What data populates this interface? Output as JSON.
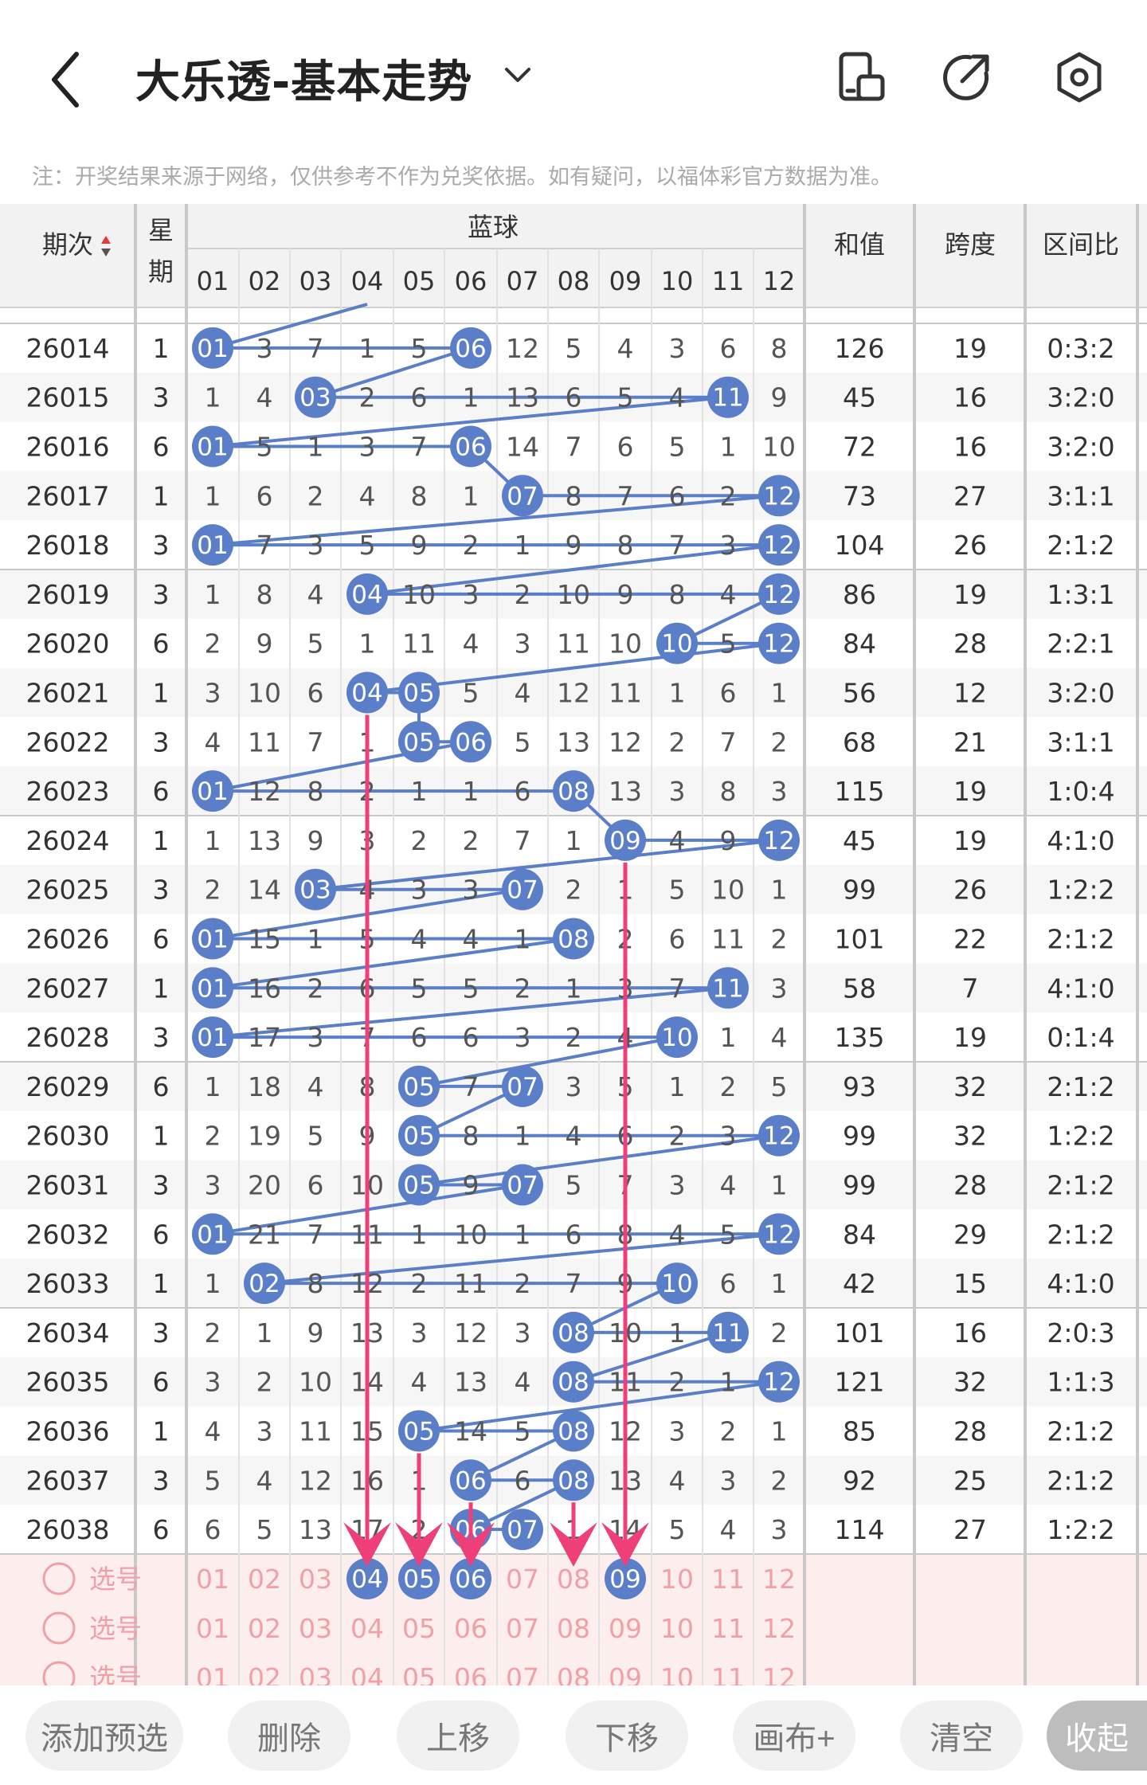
{
  "header": {
    "title": "大乐透-基本走势",
    "note": "注：开奖结果来源于网络，仅供参考不作为兑奖依据。如有疑问，以福体彩官方数据为准。",
    "icons": [
      "back-icon",
      "chevron-down-icon",
      "layout-icon",
      "share-icon",
      "settings-icon"
    ]
  },
  "table": {
    "col_period": "期次",
    "col_week_1": "星",
    "col_week_2": "期",
    "col_blue": "蓝球",
    "col_sum": "和值",
    "col_span": "跨度",
    "col_ratio": "区间比",
    "numbers": [
      "01",
      "02",
      "03",
      "04",
      "05",
      "06",
      "07",
      "08",
      "09",
      "10",
      "11",
      "12"
    ],
    "rows": [
      {
        "p": "26014",
        "w": "1",
        "c": [
          "01",
          "3",
          "7",
          "1",
          "5",
          "06",
          "12",
          "5",
          "4",
          "3",
          "6",
          "8"
        ],
        "s": "126",
        "k": "19",
        "r": "0:3:2"
      },
      {
        "p": "26015",
        "w": "3",
        "c": [
          "1",
          "4",
          "03",
          "2",
          "6",
          "1",
          "13",
          "6",
          "5",
          "4",
          "11",
          "9"
        ],
        "s": "45",
        "k": "16",
        "r": "3:2:0"
      },
      {
        "p": "26016",
        "w": "6",
        "c": [
          "01",
          "5",
          "1",
          "3",
          "7",
          "06",
          "14",
          "7",
          "6",
          "5",
          "1",
          "10"
        ],
        "s": "72",
        "k": "16",
        "r": "3:2:0"
      },
      {
        "p": "26017",
        "w": "1",
        "c": [
          "1",
          "6",
          "2",
          "4",
          "8",
          "1",
          "07",
          "8",
          "7",
          "6",
          "2",
          "12"
        ],
        "s": "73",
        "k": "27",
        "r": "3:1:1"
      },
      {
        "p": "26018",
        "w": "3",
        "c": [
          "01",
          "7",
          "3",
          "5",
          "9",
          "2",
          "1",
          "9",
          "8",
          "7",
          "3",
          "12"
        ],
        "s": "104",
        "k": "26",
        "r": "2:1:2"
      },
      {
        "p": "26019",
        "w": "3",
        "c": [
          "1",
          "8",
          "4",
          "04",
          "10",
          "3",
          "2",
          "10",
          "9",
          "8",
          "4",
          "12"
        ],
        "s": "86",
        "k": "19",
        "r": "1:3:1"
      },
      {
        "p": "26020",
        "w": "6",
        "c": [
          "2",
          "9",
          "5",
          "1",
          "11",
          "4",
          "3",
          "11",
          "10",
          "10",
          "5",
          "12"
        ],
        "s": "84",
        "k": "28",
        "r": "2:2:1"
      },
      {
        "p": "26021",
        "w": "1",
        "c": [
          "3",
          "10",
          "6",
          "04",
          "05",
          "5",
          "4",
          "12",
          "11",
          "1",
          "6",
          "1"
        ],
        "s": "56",
        "k": "12",
        "r": "3:2:0"
      },
      {
        "p": "26022",
        "w": "3",
        "c": [
          "4",
          "11",
          "7",
          "1",
          "05",
          "06",
          "5",
          "13",
          "12",
          "2",
          "7",
          "2"
        ],
        "s": "68",
        "k": "21",
        "r": "3:1:1"
      },
      {
        "p": "26023",
        "w": "6",
        "c": [
          "01",
          "12",
          "8",
          "2",
          "1",
          "1",
          "6",
          "08",
          "13",
          "3",
          "8",
          "3"
        ],
        "s": "115",
        "k": "19",
        "r": "1:0:4"
      },
      {
        "p": "26024",
        "w": "1",
        "c": [
          "1",
          "13",
          "9",
          "3",
          "2",
          "2",
          "7",
          "1",
          "09",
          "4",
          "9",
          "12"
        ],
        "s": "45",
        "k": "19",
        "r": "4:1:0"
      },
      {
        "p": "26025",
        "w": "3",
        "c": [
          "2",
          "14",
          "03",
          "4",
          "3",
          "3",
          "07",
          "2",
          "1",
          "5",
          "10",
          "1"
        ],
        "s": "99",
        "k": "26",
        "r": "1:2:2"
      },
      {
        "p": "26026",
        "w": "6",
        "c": [
          "01",
          "15",
          "1",
          "5",
          "4",
          "4",
          "1",
          "08",
          "2",
          "6",
          "11",
          "2"
        ],
        "s": "101",
        "k": "22",
        "r": "2:1:2"
      },
      {
        "p": "26027",
        "w": "1",
        "c": [
          "01",
          "16",
          "2",
          "6",
          "5",
          "5",
          "2",
          "1",
          "3",
          "7",
          "11",
          "3"
        ],
        "s": "58",
        "k": "7",
        "r": "4:1:0"
      },
      {
        "p": "26028",
        "w": "3",
        "c": [
          "01",
          "17",
          "3",
          "7",
          "6",
          "6",
          "3",
          "2",
          "4",
          "10",
          "1",
          "4"
        ],
        "s": "135",
        "k": "19",
        "r": "0:1:4"
      },
      {
        "p": "26029",
        "w": "6",
        "c": [
          "1",
          "18",
          "4",
          "8",
          "05",
          "7",
          "07",
          "3",
          "5",
          "1",
          "2",
          "5"
        ],
        "s": "93",
        "k": "32",
        "r": "2:1:2"
      },
      {
        "p": "26030",
        "w": "1",
        "c": [
          "2",
          "19",
          "5",
          "9",
          "05",
          "8",
          "1",
          "4",
          "6",
          "2",
          "3",
          "12"
        ],
        "s": "99",
        "k": "32",
        "r": "1:2:2"
      },
      {
        "p": "26031",
        "w": "3",
        "c": [
          "3",
          "20",
          "6",
          "10",
          "05",
          "9",
          "07",
          "5",
          "7",
          "3",
          "4",
          "1"
        ],
        "s": "99",
        "k": "28",
        "r": "2:1:2"
      },
      {
        "p": "26032",
        "w": "6",
        "c": [
          "01",
          "21",
          "7",
          "11",
          "1",
          "10",
          "1",
          "6",
          "8",
          "4",
          "5",
          "12"
        ],
        "s": "84",
        "k": "29",
        "r": "2:1:2"
      },
      {
        "p": "26033",
        "w": "1",
        "c": [
          "1",
          "02",
          "8",
          "12",
          "2",
          "11",
          "2",
          "7",
          "9",
          "10",
          "6",
          "1"
        ],
        "s": "42",
        "k": "15",
        "r": "4:1:0"
      },
      {
        "p": "26034",
        "w": "3",
        "c": [
          "2",
          "1",
          "9",
          "13",
          "3",
          "12",
          "3",
          "08",
          "10",
          "1",
          "11",
          "2"
        ],
        "s": "101",
        "k": "16",
        "r": "2:0:3"
      },
      {
        "p": "26035",
        "w": "6",
        "c": [
          "3",
          "2",
          "10",
          "14",
          "4",
          "13",
          "4",
          "08",
          "11",
          "2",
          "1",
          "12"
        ],
        "s": "121",
        "k": "32",
        "r": "1:1:3"
      },
      {
        "p": "26036",
        "w": "1",
        "c": [
          "4",
          "3",
          "11",
          "15",
          "05",
          "14",
          "5",
          "08",
          "12",
          "3",
          "2",
          "1"
        ],
        "s": "85",
        "k": "28",
        "r": "2:1:2"
      },
      {
        "p": "26037",
        "w": "3",
        "c": [
          "5",
          "4",
          "12",
          "16",
          "1",
          "06",
          "6",
          "08",
          "13",
          "4",
          "3",
          "2"
        ],
        "s": "92",
        "k": "25",
        "r": "2:1:2"
      },
      {
        "p": "26038",
        "w": "6",
        "c": [
          "6",
          "5",
          "13",
          "17",
          "2",
          "06",
          "07",
          "1",
          "14",
          "5",
          "4",
          "3"
        ],
        "s": "114",
        "k": "27",
        "r": "1:2:2"
      }
    ],
    "hits": [
      [
        1,
        6
      ],
      [
        3,
        11
      ],
      [
        1,
        6
      ],
      [
        7,
        12
      ],
      [
        1,
        12
      ],
      [
        4,
        12
      ],
      [
        10,
        12
      ],
      [
        4,
        5
      ],
      [
        5,
        6
      ],
      [
        1,
        8
      ],
      [
        9,
        12
      ],
      [
        3,
        7
      ],
      [
        1,
        8
      ],
      [
        1,
        11
      ],
      [
        1,
        10
      ],
      [
        5,
        7
      ],
      [
        5,
        12
      ],
      [
        5,
        7
      ],
      [
        1,
        12
      ],
      [
        2,
        10
      ],
      [
        8,
        11
      ],
      [
        8,
        12
      ],
      [
        5,
        8
      ],
      [
        6,
        8
      ],
      [
        6,
        7
      ]
    ],
    "select_label": "选号",
    "select_rows": [
      {
        "selected": [
          4,
          5,
          6,
          9
        ]
      },
      {
        "selected": []
      },
      {
        "selected": []
      }
    ],
    "arrows": [
      4,
      5,
      6,
      8,
      9
    ]
  },
  "buttons": {
    "add": "添加预选",
    "delete": "删除",
    "up": "上移",
    "down": "下移",
    "canvas": "画布+",
    "clear": "清空",
    "collapse": "收起"
  },
  "colors": {
    "ball": "#5b7ec8",
    "line": "#5b7ec8",
    "arrow": "#ee3f78",
    "pink_bg": "#fdeeee",
    "pink_text": "#f1a0a8"
  }
}
